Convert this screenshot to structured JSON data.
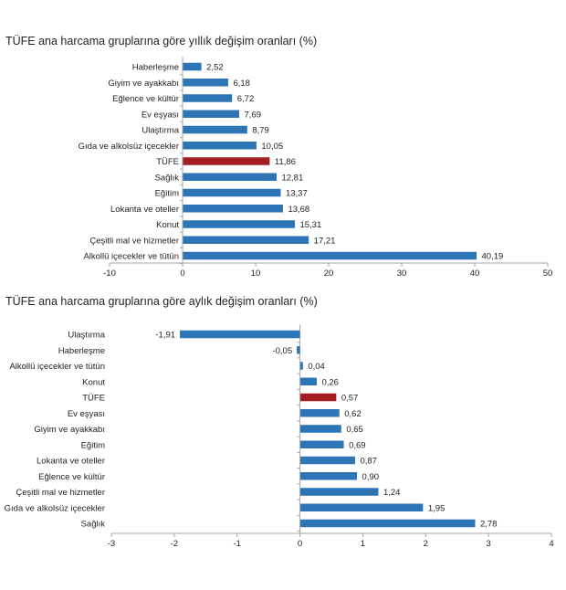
{
  "colors": {
    "bar": "#2e75b6",
    "highlight": "#a51d22",
    "axis": "#a6a6a6"
  },
  "chart_data": [
    {
      "type": "bar",
      "orientation": "horizontal",
      "title": "TÜFE ana harcama gruplarına göre yıllık değişim oranları (%)",
      "categories": [
        "Haberleşme",
        "Giyim ve ayakkabı",
        "Eğlence ve kültür",
        "Ev eşyası",
        "Ulaştırma",
        "Gıda ve alkolsüz içecekler",
        "TÜFE",
        "Sağlık",
        "Eğitim",
        "Lokanta ve oteller",
        "Konut",
        "Çeşitli mal ve hizmetler",
        "Alkollü içecekler ve tütün"
      ],
      "values": [
        2.52,
        6.18,
        6.72,
        7.69,
        8.79,
        10.05,
        11.86,
        12.81,
        13.37,
        13.68,
        15.31,
        17.21,
        40.19
      ],
      "value_labels": [
        "2,52",
        "6,18",
        "6,72",
        "7,69",
        "8,79",
        "10,05",
        "11,86",
        "12,81",
        "13,37",
        "13,68",
        "15,31",
        "17,21",
        "40,19"
      ],
      "highlight": "TÜFE",
      "xlim": [
        -10,
        50
      ],
      "xticks": [
        "-10",
        "0",
        "10",
        "20",
        "30",
        "40",
        "50"
      ],
      "grid": false
    },
    {
      "type": "bar",
      "orientation": "horizontal",
      "title": "TÜFE ana harcama gruplarına göre aylık değişim oranları (%)",
      "categories": [
        "Ulaştırma",
        "Haberleşme",
        "Alkollü içecekler ve tütün",
        "Konut",
        "TÜFE",
        "Ev eşyası",
        "Giyim ve ayakkabı",
        "Eğitim",
        "Lokanta ve oteller",
        "Eğlence ve kültür",
        "Çeşitli mal ve hizmetler",
        "Gıda ve alkolsüz içecekler",
        "Sağlık"
      ],
      "values": [
        -1.91,
        -0.05,
        0.04,
        0.26,
        0.57,
        0.62,
        0.65,
        0.69,
        0.87,
        0.9,
        1.24,
        1.95,
        2.78
      ],
      "value_labels": [
        "-1,91",
        "-0,05",
        "0,04",
        "0,26",
        "0,57",
        "0,62",
        "0,65",
        "0,69",
        "0,87",
        "0,90",
        "1,24",
        "1,95",
        "2,78"
      ],
      "highlight": "TÜFE",
      "xlim": [
        -3,
        4
      ],
      "xticks": [
        "-3",
        "-2",
        "-1",
        "0",
        "1",
        "2",
        "3",
        "4"
      ],
      "grid": false
    }
  ]
}
